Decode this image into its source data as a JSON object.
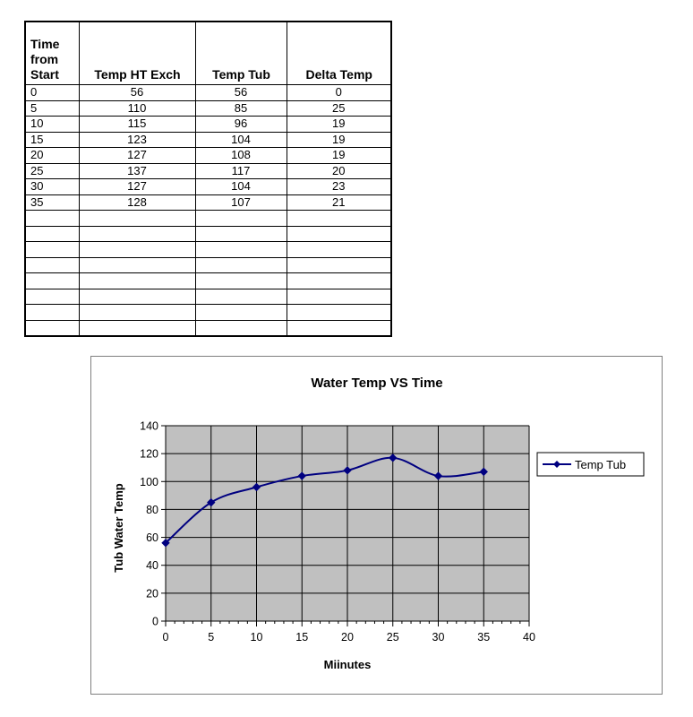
{
  "table": {
    "headers": [
      "Time from Start",
      "Temp HT Exch",
      "Temp Tub",
      "Delta Temp"
    ],
    "header_lines": [
      [
        "Time",
        "from",
        "Start"
      ],
      [
        "Temp HT Exch"
      ],
      [
        "Temp Tub"
      ],
      [
        "Delta Temp"
      ]
    ],
    "rows": [
      [
        "0",
        "56",
        "56",
        "0"
      ],
      [
        "5",
        "110",
        "85",
        "25"
      ],
      [
        "10",
        "115",
        "96",
        "19"
      ],
      [
        "15",
        "123",
        "104",
        "19"
      ],
      [
        "20",
        "127",
        "108",
        "19"
      ],
      [
        "25",
        "137",
        "117",
        "20"
      ],
      [
        "30",
        "127",
        "104",
        "23"
      ],
      [
        "35",
        "128",
        "107",
        "21"
      ]
    ],
    "empty_rows": 8
  },
  "chart_data": {
    "type": "line",
    "title": "Water Temp VS Time",
    "xlabel": "Miinutes",
    "ylabel": "Tub Water Temp",
    "xlim": [
      0,
      40
    ],
    "ylim": [
      0,
      140
    ],
    "xticks": [
      0,
      5,
      10,
      15,
      20,
      25,
      30,
      35,
      40
    ],
    "yticks": [
      0,
      20,
      40,
      60,
      80,
      100,
      120,
      140
    ],
    "grid": true,
    "plot_background": "#c0c0c0",
    "legend": "right",
    "series": [
      {
        "name": "Temp Tub",
        "color": "#000080",
        "marker": "diamond",
        "smooth": true,
        "x": [
          0,
          5,
          10,
          15,
          20,
          25,
          30,
          35
        ],
        "y": [
          56,
          85,
          96,
          104,
          108,
          117,
          104,
          107
        ]
      }
    ]
  }
}
